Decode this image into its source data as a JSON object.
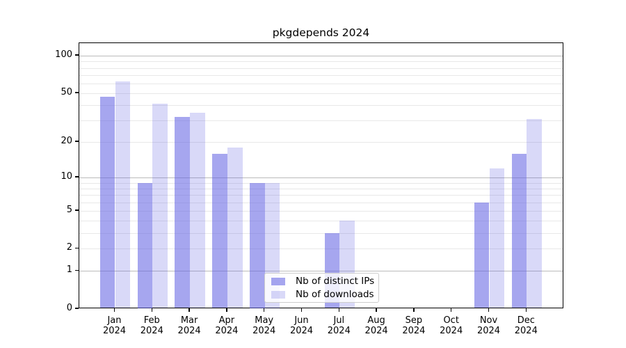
{
  "chart_data": {
    "type": "bar",
    "title": "pkgdepends 2024",
    "year_label": "2024",
    "months": [
      "Jan",
      "Feb",
      "Mar",
      "Apr",
      "May",
      "Jun",
      "Jul",
      "Aug",
      "Sep",
      "Oct",
      "Nov",
      "Dec"
    ],
    "series": [
      {
        "name": "Nb of distinct IPs",
        "color": "#6161e2",
        "alpha": 0.56,
        "values": [
          47,
          9,
          32,
          16,
          9,
          0,
          3,
          0,
          0,
          0,
          6,
          16
        ]
      },
      {
        "name": "Nb of downloads",
        "color": "#6161e2",
        "alpha": 0.24,
        "values": [
          62,
          41,
          35,
          18,
          9,
          0,
          4,
          0,
          0,
          0,
          12,
          31
        ]
      }
    ],
    "yscale": "log1p",
    "ylim": [
      0,
      126
    ],
    "yticks": [
      0,
      1,
      2,
      5,
      10,
      20,
      50,
      100
    ],
    "major_gridlines": [
      1,
      10,
      100
    ],
    "minor_gridlines": [
      2,
      3,
      4,
      5,
      6,
      7,
      8,
      9,
      20,
      30,
      40,
      50,
      60,
      70,
      80,
      90
    ],
    "grid": true,
    "legend_position": "lower center"
  },
  "colors": {
    "bar_dark_visible": "#a8a8ef",
    "bar_light_visible": "#d9d9f8",
    "major_grid": "#bbbbbb",
    "minor_grid": "#e8e8e8",
    "spine": "#000000",
    "legend_border": "#cccccc"
  }
}
